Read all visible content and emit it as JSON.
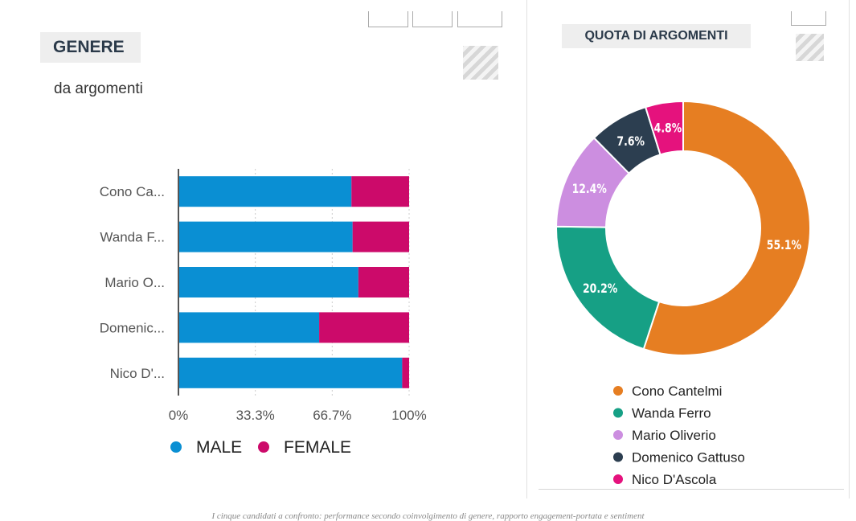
{
  "left_panel": {
    "tag": "GENERE",
    "subtitle": "da argomenti"
  },
  "right_panel": {
    "tag": "QUOTA DI ARGOMENTI"
  },
  "caption": "I cinque candidati a confronto: performance secondo coinvolgimento di genere, rapporto engagement-portata e sentiment",
  "colors": {
    "male": "#0a8fd3",
    "female": "#cc0a6a",
    "axis": "#555555",
    "grid": "#cccccc"
  },
  "chart_data": [
    {
      "type": "bar",
      "orientation": "horizontal",
      "stacked": "percent",
      "categories": [
        "Cono Ca...",
        "Wanda F...",
        "Mario O...",
        "Domenic...",
        "Nico D'..."
      ],
      "series": [
        {
          "name": "MALE",
          "color": "#0a8fd3",
          "values": [
            75,
            75.5,
            78,
            61,
            97
          ]
        },
        {
          "name": "FEMALE",
          "color": "#cc0a6a",
          "values": [
            25,
            24.5,
            22,
            39,
            3
          ]
        }
      ],
      "x_ticks": [
        "0%",
        "33.3%",
        "66.7%",
        "100%"
      ],
      "xlim": [
        0,
        100
      ],
      "legend_position": "bottom"
    },
    {
      "type": "pie",
      "donut": true,
      "slices": [
        {
          "label": "Cono Cantelmi",
          "value": 55.1,
          "display": "55.1%",
          "color": "#e67e22"
        },
        {
          "label": "Wanda Ferro",
          "value": 20.2,
          "display": "20.2%",
          "color": "#16a085"
        },
        {
          "label": "Mario Oliverio",
          "value": 12.4,
          "display": "12.4%",
          "color": "#cc8ee0"
        },
        {
          "label": "Domenico Gattuso",
          "value": 7.6,
          "display": "7.6%",
          "color": "#2c3e50"
        },
        {
          "label": "Nico D'Ascola",
          "value": 4.8,
          "display": "4.8%",
          "color": "#e5127d"
        }
      ],
      "legend_position": "bottom"
    }
  ]
}
